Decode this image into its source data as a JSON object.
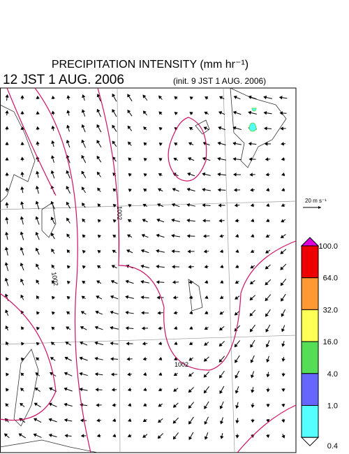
{
  "header": {
    "title": "PRECIPITATION INTENSITY (mm hr⁻¹)",
    "time": "12 JST 1 AUG. 2006",
    "init": "(init. 9 JST 1 AUG. 2006)"
  },
  "map": {
    "contour_labels": [
      "1002",
      "1002",
      "1002"
    ],
    "scale_label": "20 m s⁻¹"
  },
  "colorbar": {
    "ticks": [
      {
        "value": 100,
        "label": "100.0"
      },
      {
        "value": 64,
        "label": "64.0"
      },
      {
        "value": 32,
        "label": "32.0"
      },
      {
        "value": 16,
        "label": "16.0"
      },
      {
        "value": 4,
        "label": "4.0"
      },
      {
        "value": 1,
        "label": "1.0"
      },
      {
        "value": 0.4,
        "label": "0.4"
      }
    ],
    "colors": [
      "#dd00dd",
      "#ee0000",
      "#ff9933",
      "#ffff55",
      "#55dd55",
      "#6666ff",
      "#55ffff",
      "#ffffff"
    ]
  }
}
